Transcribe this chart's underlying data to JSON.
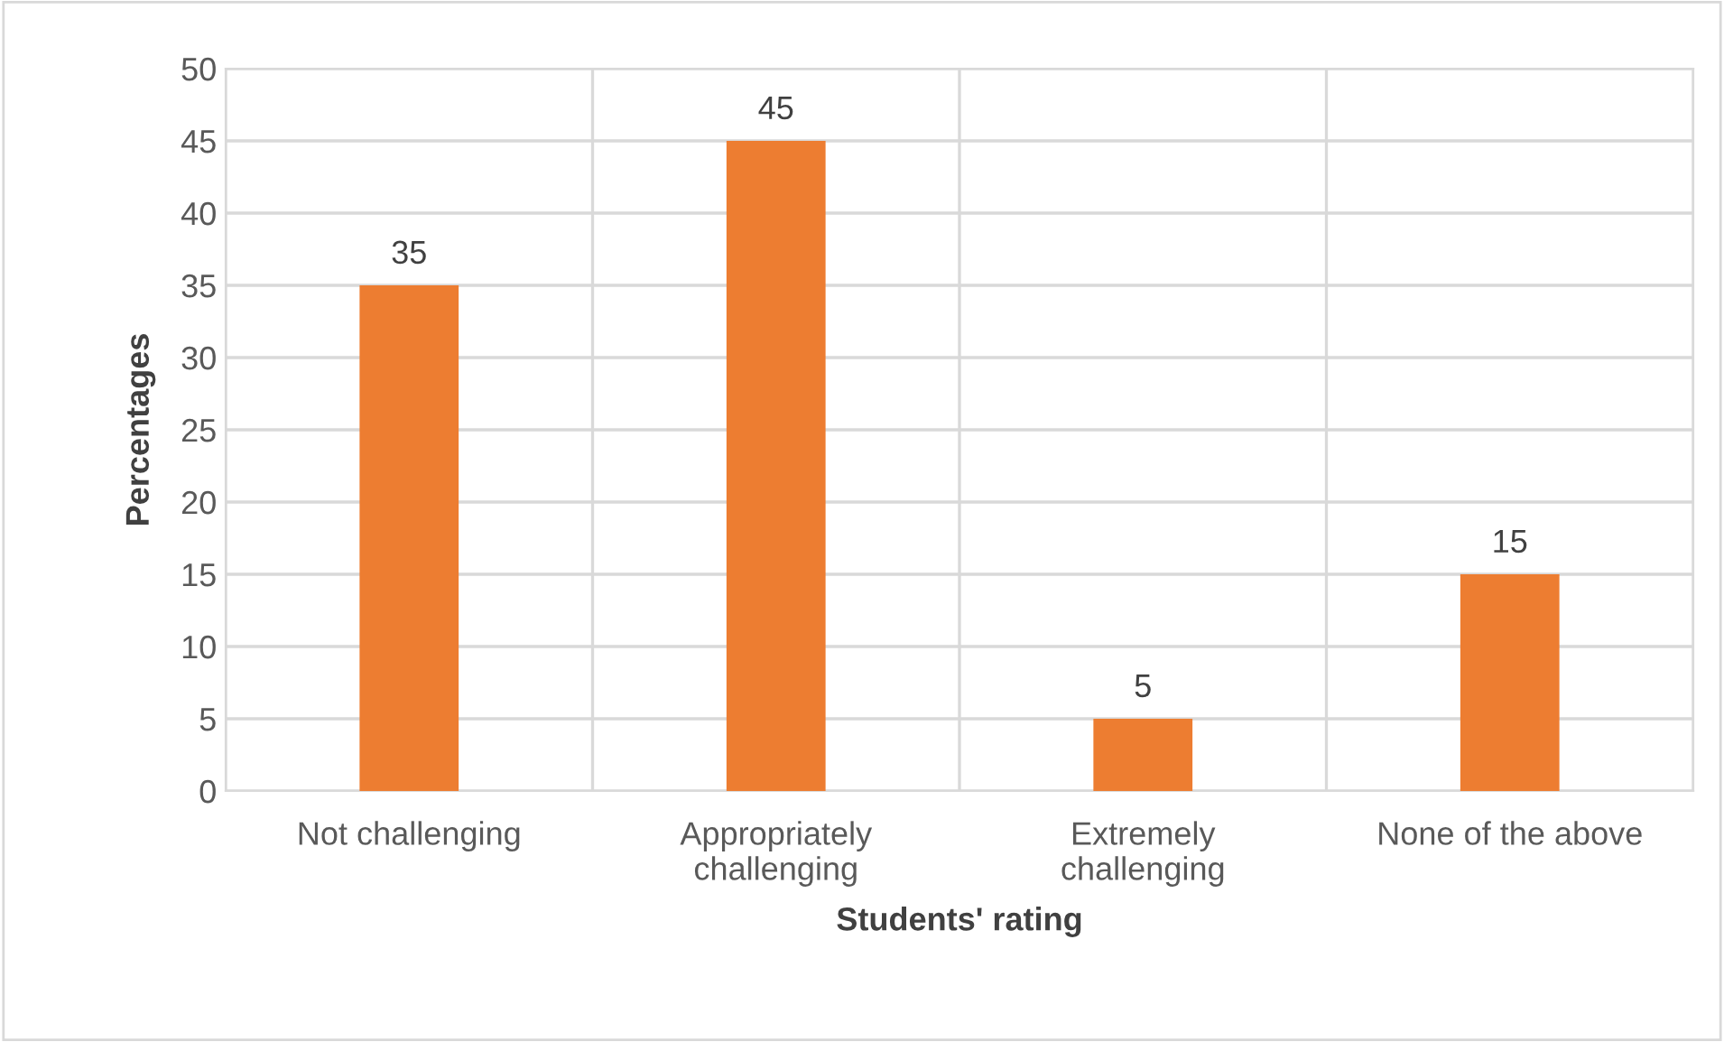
{
  "chart_data": {
    "type": "bar",
    "xlabel": "Students' rating",
    "ylabel": "Percentages",
    "categories": [
      "Not challenging",
      "Appropriately\nchallenging",
      "Extremely\nchallenging",
      "None of the above"
    ],
    "values": [
      35,
      45,
      5,
      15
    ],
    "color": "#ed7d31",
    "ylim": [
      0,
      50
    ],
    "yticks": [
      0,
      5,
      10,
      15,
      20,
      25,
      30,
      35,
      40,
      45,
      50
    ],
    "grid": true,
    "data_labels": true
  }
}
